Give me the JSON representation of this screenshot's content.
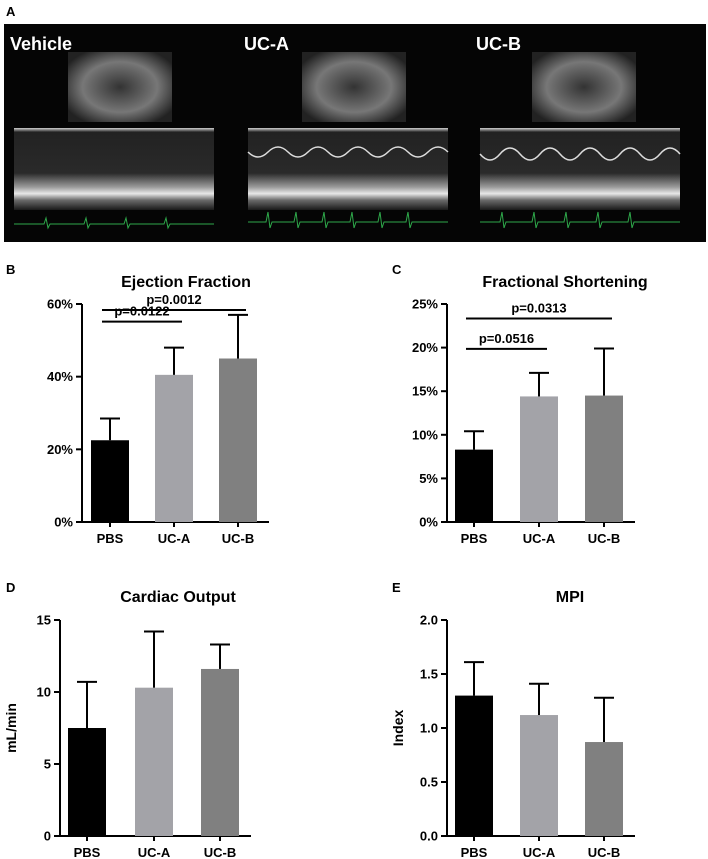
{
  "panel_letters": {
    "a": "A",
    "b": "B",
    "c": "C",
    "d": "D",
    "e": "E"
  },
  "echo_labels": [
    "Vehicle",
    "UC-A",
    "UC-B"
  ],
  "colors": {
    "pbs": "#000000",
    "uca": "#a3a3a8",
    "ucb": "#808080",
    "ecg": "#2ea84a"
  },
  "chart_data": [
    {
      "panel": "B",
      "type": "bar",
      "title": "Ejection Fraction",
      "categories": [
        "PBS",
        "UC-A",
        "UC-B"
      ],
      "values": [
        22.5,
        40.5,
        45
      ],
      "errors": [
        6,
        7.5,
        12
      ],
      "ylim": [
        0,
        60
      ],
      "yticks": [
        0,
        20,
        40,
        60
      ],
      "ytick_labels": [
        "0%",
        "20%",
        "40%",
        "60%"
      ],
      "ylabel": "",
      "xlabel": "",
      "significance": [
        {
          "from": 0,
          "to": 1,
          "label": "p=0.0122"
        },
        {
          "from": 0,
          "to": 2,
          "label": "p=0.0012"
        }
      ]
    },
    {
      "panel": "C",
      "type": "bar",
      "title": "Fractional Shortening",
      "categories": [
        "PBS",
        "UC-A",
        "UC-B"
      ],
      "values": [
        8.3,
        14.4,
        14.5
      ],
      "errors": [
        2.1,
        2.7,
        5.4
      ],
      "ylim": [
        0,
        25
      ],
      "yticks": [
        0,
        5,
        10,
        15,
        20,
        25
      ],
      "ytick_labels": [
        "0%",
        "5%",
        "10%",
        "15%",
        "20%",
        "25%"
      ],
      "ylabel": "",
      "xlabel": "",
      "significance": [
        {
          "from": 0,
          "to": 1,
          "label": "p=0.0516"
        },
        {
          "from": 0,
          "to": 2,
          "label": "p=0.0313"
        }
      ]
    },
    {
      "panel": "D",
      "type": "bar",
      "title": "Cardiac Output",
      "categories": [
        "PBS",
        "UC-A",
        "UC-B"
      ],
      "values": [
        7.5,
        10.3,
        11.6
      ],
      "errors": [
        3.2,
        3.9,
        1.7
      ],
      "ylim": [
        0,
        15
      ],
      "yticks": [
        0,
        5,
        10,
        15
      ],
      "ytick_labels": [
        "0",
        "5",
        "10",
        "15"
      ],
      "ylabel": "mL/min",
      "xlabel": "",
      "significance": []
    },
    {
      "panel": "E",
      "type": "bar",
      "title": "MPI",
      "categories": [
        "PBS",
        "UC-A",
        "UC-B"
      ],
      "values": [
        1.3,
        1.12,
        0.87
      ],
      "errors": [
        0.31,
        0.29,
        0.41
      ],
      "ylim": [
        0,
        2
      ],
      "yticks": [
        0,
        0.5,
        1,
        1.5,
        2
      ],
      "ytick_labels": [
        "0.0",
        "0.5",
        "1.0",
        "1.5",
        "2.0"
      ],
      "ylabel": "Index",
      "xlabel": "",
      "significance": []
    }
  ]
}
